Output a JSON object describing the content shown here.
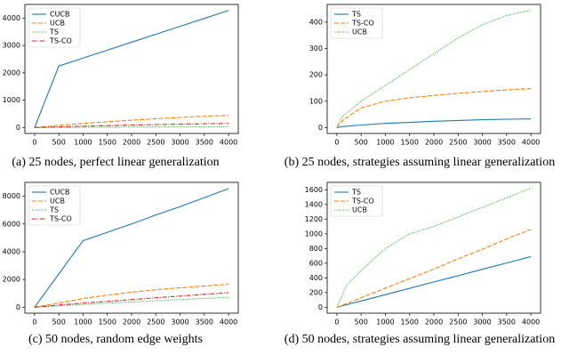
{
  "chart_data": [
    {
      "type": "line",
      "caption": "(a) 25 nodes, perfect linear generalization",
      "x": [
        0,
        500,
        1000,
        1500,
        2000,
        2500,
        3000,
        3500,
        4000
      ],
      "xlim": [
        -200,
        4200
      ],
      "xticks": [
        0,
        500,
        1000,
        1500,
        2000,
        2500,
        3000,
        3500,
        4000
      ],
      "ylim": [
        -215,
        4500
      ],
      "yticks": [
        0,
        1000,
        2000,
        3000,
        4000
      ],
      "legend": "upper left",
      "series": [
        {
          "name": "CUCB",
          "color": "#1f77b4",
          "linestyle": "solid",
          "values": [
            0,
            2250,
            2540,
            2830,
            3120,
            3410,
            3700,
            3990,
            4280
          ]
        },
        {
          "name": "UCB",
          "color": "#ff7f0e",
          "linestyle": "dashed",
          "values": [
            0,
            80,
            150,
            210,
            270,
            320,
            370,
            410,
            450
          ]
        },
        {
          "name": "TS",
          "color": "#2ca02c",
          "linestyle": "dotted",
          "values": [
            0,
            5,
            10,
            14,
            18,
            22,
            25,
            28,
            30
          ]
        },
        {
          "name": "TS-CO",
          "color": "#d62728",
          "linestyle": "dashdot",
          "values": [
            0,
            25,
            50,
            70,
            90,
            110,
            125,
            140,
            150
          ]
        }
      ]
    },
    {
      "type": "line",
      "caption": "(b) 25 nodes, strategies assuming linear generalization",
      "x": [
        0,
        100,
        500,
        1000,
        1500,
        2000,
        2500,
        3000,
        3500,
        4000
      ],
      "xlim": [
        -200,
        4200
      ],
      "xticks": [
        0,
        500,
        1000,
        1500,
        2000,
        2500,
        3000,
        3500,
        4000
      ],
      "ylim": [
        -22,
        467
      ],
      "yticks": [
        0,
        100,
        200,
        300,
        400
      ],
      "legend": "upper left",
      "series": [
        {
          "name": "TS",
          "color": "#1f77b4",
          "linestyle": "solid",
          "values": [
            0,
            4,
            10,
            16,
            20,
            24,
            27,
            30,
            32,
            33
          ]
        },
        {
          "name": "TS-CO",
          "color": "#ff7f0e",
          "linestyle": "dashed",
          "values": [
            0,
            25,
            75,
            100,
            113,
            122,
            130,
            137,
            143,
            148
          ]
        },
        {
          "name": "UCB",
          "color": "#2ca02c",
          "linestyle": "dotted",
          "values": [
            0,
            40,
            100,
            160,
            220,
            280,
            340,
            390,
            425,
            445
          ]
        }
      ]
    },
    {
      "type": "line",
      "caption": "(c) 50 nodes, random edge weights",
      "x": [
        0,
        500,
        1000,
        1500,
        2000,
        2500,
        3000,
        3500,
        4000
      ],
      "xlim": [
        -200,
        4200
      ],
      "xticks": [
        0,
        500,
        1000,
        1500,
        2000,
        2500,
        3000,
        3500,
        4000
      ],
      "ylim": [
        -430,
        9000
      ],
      "yticks": [
        0,
        2000,
        4000,
        6000,
        8000
      ],
      "legend": "upper left",
      "series": [
        {
          "name": "CUCB",
          "color": "#1f77b4",
          "linestyle": "solid",
          "values": [
            0,
            2400,
            4800,
            5400,
            6000,
            6650,
            7250,
            7900,
            8550
          ]
        },
        {
          "name": "UCB",
          "color": "#ff7f0e",
          "linestyle": "dashed",
          "values": [
            0,
            300,
            620,
            870,
            1080,
            1260,
            1400,
            1530,
            1650
          ]
        },
        {
          "name": "TS",
          "color": "#2ca02c",
          "linestyle": "dotted",
          "values": [
            0,
            100,
            200,
            290,
            380,
            470,
            550,
            630,
            700
          ]
        },
        {
          "name": "TS-CO",
          "color": "#d62728",
          "linestyle": "dashdot",
          "values": [
            0,
            150,
            300,
            420,
            550,
            680,
            800,
            930,
            1050
          ]
        }
      ]
    },
    {
      "type": "line",
      "caption": "(d) 50 nodes, strategies assuming linear generalization",
      "x": [
        0,
        200,
        500,
        1000,
        1500,
        2000,
        2500,
        3000,
        3500,
        4000
      ],
      "xlim": [
        -200,
        4200
      ],
      "xticks": [
        0,
        500,
        1000,
        1500,
        2000,
        2500,
        3000,
        3500,
        4000
      ],
      "ylim": [
        -80,
        1700
      ],
      "yticks": [
        0,
        200,
        400,
        600,
        800,
        1000,
        1200,
        1400,
        1600
      ],
      "legend": "upper left",
      "series": [
        {
          "name": "TS",
          "color": "#1f77b4",
          "linestyle": "solid",
          "values": [
            0,
            35,
            86,
            172,
            258,
            345,
            430,
            517,
            603,
            690
          ]
        },
        {
          "name": "TS-CO",
          "color": "#ff7f0e",
          "linestyle": "dashed",
          "values": [
            0,
            50,
            130,
            260,
            390,
            520,
            660,
            790,
            930,
            1060
          ]
        },
        {
          "name": "UCB",
          "color": "#2ca02c",
          "linestyle": "dotted",
          "values": [
            0,
            300,
            500,
            800,
            1000,
            1100,
            1230,
            1360,
            1490,
            1620
          ]
        }
      ]
    }
  ]
}
